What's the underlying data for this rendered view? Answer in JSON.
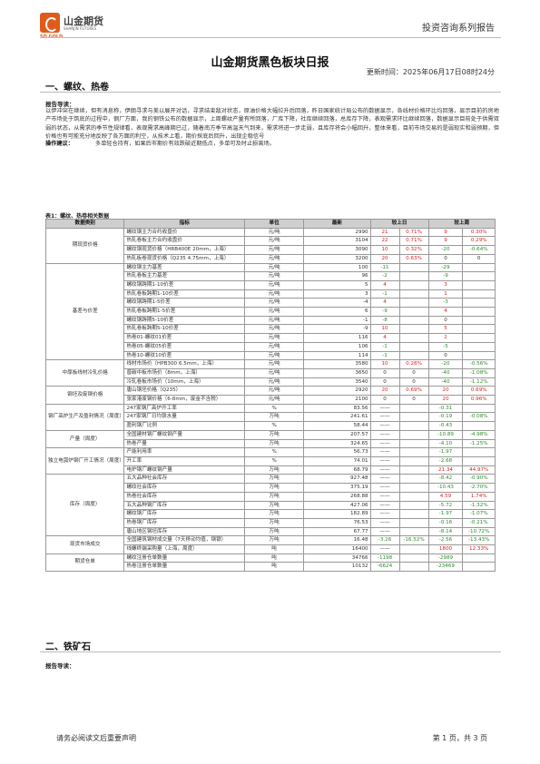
{
  "header": {
    "logo_cn": "山金期货",
    "logo_sub": "SHANJIN FUTURES",
    "logo_en": "SD GOLD",
    "report_series": "投资咨询系列报告"
  },
  "title": "山金期货黑色板块日报",
  "update_time": "更新时间：2025年06月17日08时24分",
  "section1": {
    "heading": "一、螺纹、热卷",
    "guide_label": "报告导读：",
    "guide_text": "以伊冲突在继续，但有消息称，伊朗寻求与美以展开对话，寻求结束敌对状态，原油价格大幅拉升后回落，昨日国家统计局公布的数据显示，各线材价格环比均回落，显示目前的房地产市场处于筑底的过程中，钢厂方面，我的钢铁公布的数据显示，上周螺纹产量有所回落，厂库下降，社库继续回落，总库存下降，表观需求环比继续回落，数据显示目前处于供需双弱的状态，从需求的季节性规律看，表观需求高峰期已过，随着南方季节高温天气到来，需求将进一步走弱，且库存将会小幅回升，整体来看，目前市场交易的是弱现实和弱预期，但价格也有可能充分地反映了各方面的利空，从技术上看，期价探底后回升，出现企稳信号",
    "advice_label": "操作建议：",
    "advice_text": "多单轻仓持有，如果后市期价有效跌破近期低点，多单可及时止损离场。",
    "table_caption": "表1：螺纹、热卷相关数据",
    "table": {
      "headers": [
        "数据类别",
        "指标",
        "单位",
        "最新",
        "较上日",
        "较上周"
      ],
      "groups": [
        {
          "category": "期现货价格",
          "rows": [
            [
              "螺纹钢主力合约收盘价",
              "元/吨",
              "2990",
              "21",
              "0.71%",
              "9",
              "0.30%"
            ],
            [
              "热轧卷板主力合约收盘价",
              "元/吨",
              "3104",
              "22",
              "0.71%",
              "9",
              "0.29%"
            ],
            [
              "螺纹钢现货价格（HRB400E 20mm，上海）",
              "元/吨",
              "3090",
              "10",
              "0.32%",
              "-20",
              "-0.64%"
            ],
            [
              "热轧板卷现货价格（Q235 4.75mm，上海）",
              "元/吨",
              "3200",
              "20",
              "0.63%",
              "0",
              "0"
            ]
          ]
        },
        {
          "category": "基差与价差",
          "rows": [
            [
              "螺纹钢主力基差",
              "元/吨",
              "100",
              "-11",
              "",
              "-29",
              ""
            ],
            [
              "热轧卷板主力基差",
              "元/吨",
              "96",
              "-2",
              "",
              "-9",
              ""
            ],
            [
              "螺纹钢跨期1-10价差",
              "元/吨",
              "5",
              "4",
              "",
              "3",
              ""
            ],
            [
              "热轧卷板跨期1-10价差",
              "元/吨",
              "3",
              "-1",
              "",
              "1",
              ""
            ],
            [
              "螺纹钢跨期1-5价差",
              "元/吨",
              "-4",
              "4",
              "",
              "-3",
              ""
            ],
            [
              "热轧卷板跨期1-5价差",
              "元/吨",
              "6",
              "-9",
              "",
              "4",
              ""
            ],
            [
              "螺纹钢跨期5-10价差",
              "元/吨",
              "-1",
              "-8",
              "",
              "0",
              ""
            ],
            [
              "热轧卷板跨期5-10价差",
              "元/吨",
              "-9",
              "10",
              "",
              "5",
              ""
            ],
            [
              "热卷01-螺纹01价差",
              "元/吨",
              "116",
              "4",
              "",
              "2",
              ""
            ],
            [
              "热卷05-螺纹05价差",
              "元/吨",
              "106",
              "-1",
              "",
              "-5",
              ""
            ],
            [
              "热卷10-螺纹10价差",
              "元/吨",
              "114",
              "-1",
              "",
              "0",
              ""
            ]
          ]
        },
        {
          "category": "中厚板线材冷轧价格",
          "rows": [
            [
              "线材市场价（HPB300 6.5mm，上海）",
              "元/吨",
              "3580",
              "10",
              "0.28%",
              "-20",
              "-0.56%"
            ],
            [
              "普碳中板市场价（8mm，上海）",
              "元/吨",
              "3650",
              "0",
              "0",
              "-40",
              "-1.08%"
            ],
            [
              "冷轧卷板市场价（10mm，上海）",
              "元/吨",
              "3540",
              "0",
              "0",
              "-40",
              "-1.12%"
            ]
          ]
        },
        {
          "category": "钢坯及废钢价格",
          "rows": [
            [
              "唐山钢坯价格（Q235）",
              "元/吨",
              "2920",
              "20",
              "0.69%",
              "20",
              "0.69%"
            ],
            [
              "张家港废钢价格（6-8mm，废金不含税）",
              "元/吨",
              "2100",
              "0",
              "0",
              "20",
              "0.96%"
            ]
          ]
        },
        {
          "category": "钢厂高炉生产及盈利情况（周度）",
          "rows": [
            [
              "247家钢厂高炉开工率",
              "%",
              "83.56",
              "——",
              "",
              "-0.31",
              ""
            ],
            [
              "247家钢厂日均铁水量",
              "万吨",
              "241.61",
              "——",
              "",
              "-0.19",
              "-0.08%"
            ],
            [
              "盈利钢厂比例",
              "%",
              "58.44",
              "——",
              "",
              "-0.43",
              ""
            ]
          ]
        },
        {
          "category": "产量（周度）",
          "rows": [
            [
              "全国建材钢厂螺纹钢产量",
              "万吨",
              "207.57",
              "——",
              "",
              "-10.89",
              "-4.98%"
            ],
            [
              "热卷产量",
              "万吨",
              "324.65",
              "——",
              "",
              "-4.10",
              "-1.25%"
            ]
          ]
        },
        {
          "category": "独立电弧炉钢厂开工情况（周度）",
          "rows": [
            [
              "产能利用率",
              "%",
              "56.73",
              "——",
              "",
              "-1.97",
              ""
            ],
            [
              "开工率",
              "%",
              "74.01",
              "——",
              "",
              "-2.68",
              ""
            ],
            [
              "电炉钢厂螺纹钢产量",
              "万吨",
              "68.79",
              "——",
              "",
              "21.34",
              "44.97%"
            ]
          ]
        },
        {
          "category": "库存（周度）",
          "rows": [
            [
              "五大品种社会库存",
              "万吨",
              "927.48",
              "——",
              "",
              "-8.42",
              "-0.90%"
            ],
            [
              "螺纹社会库存",
              "万吨",
              "375.19",
              "——",
              "",
              "-10.43",
              "-2.70%"
            ],
            [
              "热卷社会库存",
              "万吨",
              "268.88",
              "——",
              "",
              "4.59",
              "1.74%"
            ],
            [
              "五大品种钢厂库存",
              "万吨",
              "427.06",
              "——",
              "",
              "-5.72",
              "-1.32%"
            ],
            [
              "螺纹钢厂库存",
              "万吨",
              "182.89",
              "——",
              "",
              "-1.97",
              "-1.07%"
            ],
            [
              "热卷钢厂库存",
              "万吨",
              "76.53",
              "——",
              "",
              "-0.16",
              "-0.21%"
            ],
            [
              "唐山地区钢坯库存",
              "万吨",
              "67.77",
              "——",
              "",
              "-8.14",
              "-10.72%"
            ]
          ]
        },
        {
          "category": "现货市场成交",
          "rows": [
            [
              "全国建筑钢材成交量（7天移动均值，钢银）",
              "万吨",
              "16.48",
              "-3.26",
              "-16.52%",
              "-2.56",
              "-13.43%"
            ],
            [
              "线螺终端采购量（上海，周度）",
              "吨",
              "16400",
              "——",
              "",
              "1800",
              "12.33%"
            ]
          ]
        },
        {
          "category": "期货仓单",
          "rows": [
            [
              "螺纹注册仓单数量",
              "吨",
              "34766",
              "-1198",
              "",
              "-2989",
              ""
            ],
            [
              "热卷注册仓单数量",
              "吨",
              "10132",
              "-6624",
              "",
              "-23469",
              ""
            ]
          ]
        }
      ]
    }
  },
  "section2": {
    "heading": "二、铁矿石",
    "guide_label": "报告导读："
  },
  "footer": {
    "disclaimer": "请务必阅读文后重要声明",
    "page": "第 1 页，共 3 页"
  },
  "colors": {
    "up": "#e02020",
    "down": "#2e8b2e",
    "brand": "#e05a1a",
    "header_bg": "#cfcfcf"
  }
}
